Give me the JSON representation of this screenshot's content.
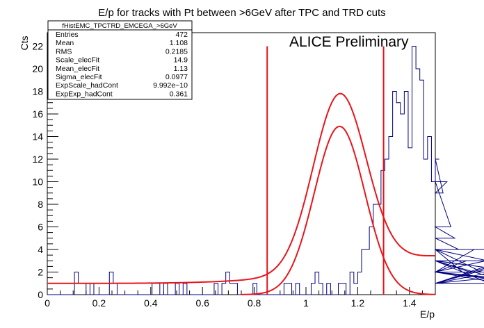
{
  "chart_data": {
    "type": "line",
    "title": "E/p for tracks with Pt between >6GeV after TPC and TRD cuts",
    "xlabel": "E/p",
    "ylabel": "Cts",
    "xlim": [
      0,
      1.5
    ],
    "ylim": [
      0,
      23.2
    ],
    "x_ticks": [
      0,
      0.2,
      0.4,
      0.6,
      0.8,
      1,
      1.2,
      1.4
    ],
    "x_tick_labels": [
      "0",
      "0.2",
      "0.4",
      "0.6",
      "0.8",
      "1",
      "1.2",
      "1.4"
    ],
    "y_ticks": [
      0,
      2,
      4,
      6,
      8,
      10,
      12,
      14,
      16,
      18,
      20,
      22
    ],
    "y_tick_labels": [
      "0",
      "2",
      "4",
      "6",
      "8",
      "10",
      "12",
      "14",
      "16",
      "18",
      "20",
      "22"
    ],
    "annotation": "ALICE Preliminary",
    "histogram": {
      "name": "fHistEMC_TPCTRD_EMCEGA_>6GeV",
      "bin_width": 0.015,
      "counts": [
        0,
        0,
        0,
        0,
        0,
        0,
        0,
        2,
        1,
        1,
        0,
        1,
        0,
        0,
        0,
        0,
        2,
        1,
        0,
        0,
        0,
        0,
        0,
        0,
        0,
        0,
        0,
        1,
        1,
        0,
        1,
        0,
        0,
        1,
        0,
        1,
        0,
        0,
        0,
        0,
        0,
        0,
        0,
        1,
        0,
        1,
        2,
        1,
        1,
        0,
        0,
        0,
        0,
        1,
        0,
        0,
        0,
        0,
        0,
        0,
        0,
        1,
        1,
        0,
        1,
        0,
        0,
        0,
        1,
        2,
        1,
        0,
        1,
        0,
        0,
        1,
        1,
        0,
        2,
        1,
        2,
        4,
        4,
        6,
        8,
        8,
        11,
        12,
        14,
        18,
        17,
        16,
        18,
        13,
        22,
        20,
        19,
        12,
        14,
        10,
        12,
        12,
        9,
        10,
        6,
        5,
        4,
        2,
        3,
        2,
        4,
        4,
        2,
        3,
        1,
        2,
        2,
        1,
        1,
        3,
        1,
        3,
        2,
        2,
        1,
        1,
        4,
        2,
        1,
        2,
        1
      ],
      "stats": [
        {
          "label": "Entries",
          "value": "472"
        },
        {
          "label": "Mean",
          "value": "1.108"
        },
        {
          "label": "RMS",
          "value": "0.2185"
        },
        {
          "label": "Scale_elecFit",
          "value": "14.9"
        },
        {
          "label": "Mean_elecFit",
          "value": "1.13"
        },
        {
          "label": "Sigma_elecFit",
          "value": "0.0977"
        },
        {
          "label": "ExpScale_hadCont",
          "value": "9.992e−10"
        },
        {
          "label": "ExpExp_hadCont",
          "value": "0.361"
        }
      ]
    },
    "fits": {
      "gaussian": {
        "scale": 14.9,
        "mean": 1.13,
        "sigma": 0.0977,
        "range": [
          0.75,
          1.5
        ]
      },
      "total": {
        "gauss_scale": 15.4,
        "mean": 1.13,
        "sigma": 0.0977,
        "background_y_at_0": 1.0,
        "background_slope": 0.7,
        "range": [
          0,
          1.5
        ]
      }
    },
    "cut_lines": [
      {
        "x": 0.85,
        "y_top": 22
      },
      {
        "x": 1.3,
        "y_top": 22
      }
    ],
    "colors": {
      "histogram": "#000080",
      "fit": "#e8141a",
      "cut": "#e8141a"
    }
  }
}
